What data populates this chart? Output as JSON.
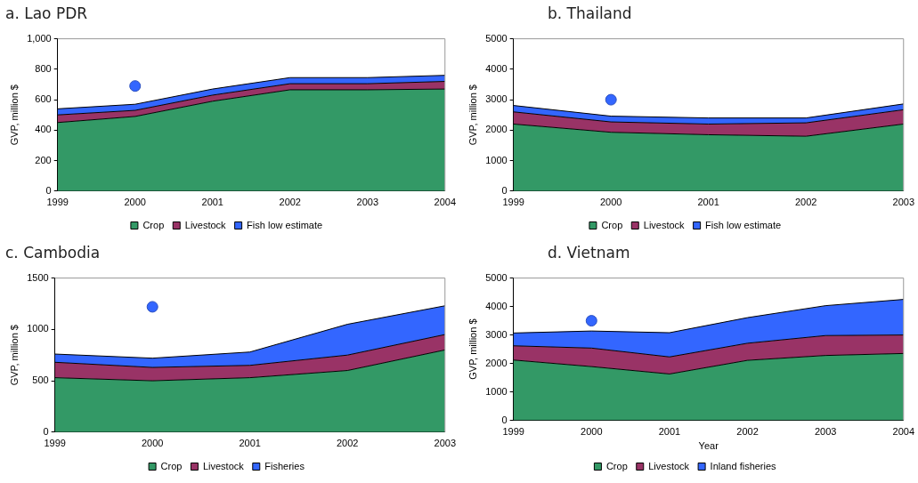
{
  "chart_data": [
    {
      "type": "area",
      "title": "a. Lao PDR",
      "ylabel": "GVP, million $",
      "categories": [
        "1999",
        "2000",
        "2001",
        "2002",
        "2003",
        "2004"
      ],
      "stacked": true,
      "ylim": [
        0,
        1000
      ],
      "yticks": [
        0,
        200,
        400,
        600,
        800,
        {
          "value": 1000,
          "label": "1,000"
        }
      ],
      "legend": "bottom",
      "grid": false,
      "series": [
        {
          "name": "Crop",
          "color": "#339966",
          "values": [
            450,
            490,
            590,
            665,
            665,
            670
          ]
        },
        {
          "name": "Livestock",
          "color": "#993366",
          "values": [
            50,
            40,
            40,
            40,
            40,
            50
          ]
        },
        {
          "name": "Fish low estimate",
          "color": "#3366ff",
          "values": [
            40,
            40,
            40,
            40,
            40,
            40
          ]
        },
        {
          "type": "scatter",
          "color": "#3366ff",
          "values": [
            null,
            690,
            null,
            null,
            null,
            null
          ],
          "marker": "circle"
        }
      ]
    },
    {
      "type": "area",
      "title": "b. Thailand",
      "ylabel": "GVP, million $",
      "categories": [
        "1999",
        "2000",
        "2001",
        "2002",
        "2003"
      ],
      "stacked": true,
      "ylim": [
        0,
        5000
      ],
      "yticks": [
        0,
        1000,
        2000,
        3000,
        4000,
        5000
      ],
      "legend": "bottom",
      "grid": false,
      "series": [
        {
          "name": "Crop",
          "color": "#339966",
          "values": [
            2200,
            1930,
            1850,
            1800,
            2200
          ]
        },
        {
          "name": "Livestock",
          "color": "#993366",
          "values": [
            400,
            340,
            350,
            440,
            470
          ]
        },
        {
          "name": "Fish low estimate",
          "color": "#3366ff",
          "values": [
            210,
            190,
            200,
            160,
            190
          ]
        },
        {
          "type": "scatter",
          "color": "#3366ff",
          "values": [
            null,
            3000,
            null,
            null,
            null
          ],
          "marker": "circle"
        }
      ]
    },
    {
      "type": "area",
      "title": "c. Cambodia",
      "ylabel": "GVP, million $",
      "categories": [
        "1999",
        "2000",
        "2001",
        "2002",
        "2003"
      ],
      "stacked": true,
      "ylim": [
        0,
        1500
      ],
      "yticks": [
        0,
        500,
        1000,
        1500
      ],
      "legend": "bottom",
      "grid": false,
      "series": [
        {
          "name": "Crop",
          "color": "#339966",
          "values": [
            530,
            500,
            530,
            600,
            800
          ]
        },
        {
          "name": "Livestock",
          "color": "#993366",
          "values": [
            150,
            130,
            120,
            150,
            150
          ]
        },
        {
          "name": "Fisheries",
          "color": "#3366ff",
          "values": [
            80,
            90,
            130,
            300,
            280
          ]
        },
        {
          "type": "scatter",
          "color": "#3366ff",
          "values": [
            null,
            1220,
            null,
            null,
            null
          ],
          "marker": "circle"
        }
      ]
    },
    {
      "type": "area",
      "title": "d. Vietnam",
      "xlabel": "Year",
      "ylabel": "GVP, million $",
      "categories": [
        "1999",
        "2000",
        "2001",
        "2002",
        "2003",
        "2004"
      ],
      "stacked": true,
      "ylim": [
        0,
        5000
      ],
      "yticks": [
        0,
        1000,
        2000,
        3000,
        4000,
        5000
      ],
      "legend": "bottom",
      "grid": false,
      "series": [
        {
          "name": "Crop",
          "color": "#339966",
          "values": [
            2120,
            1890,
            1630,
            2110,
            2280,
            2350
          ]
        },
        {
          "name": "Livestock",
          "color": "#993366",
          "values": [
            500,
            650,
            600,
            600,
            700,
            650
          ]
        },
        {
          "name": "Inland fisheries",
          "color": "#3366ff",
          "values": [
            450,
            600,
            850,
            900,
            1050,
            1250
          ]
        },
        {
          "type": "scatter",
          "color": "#3366ff",
          "values": [
            null,
            3500,
            null,
            null,
            null,
            null
          ],
          "marker": "circle"
        }
      ]
    }
  ]
}
